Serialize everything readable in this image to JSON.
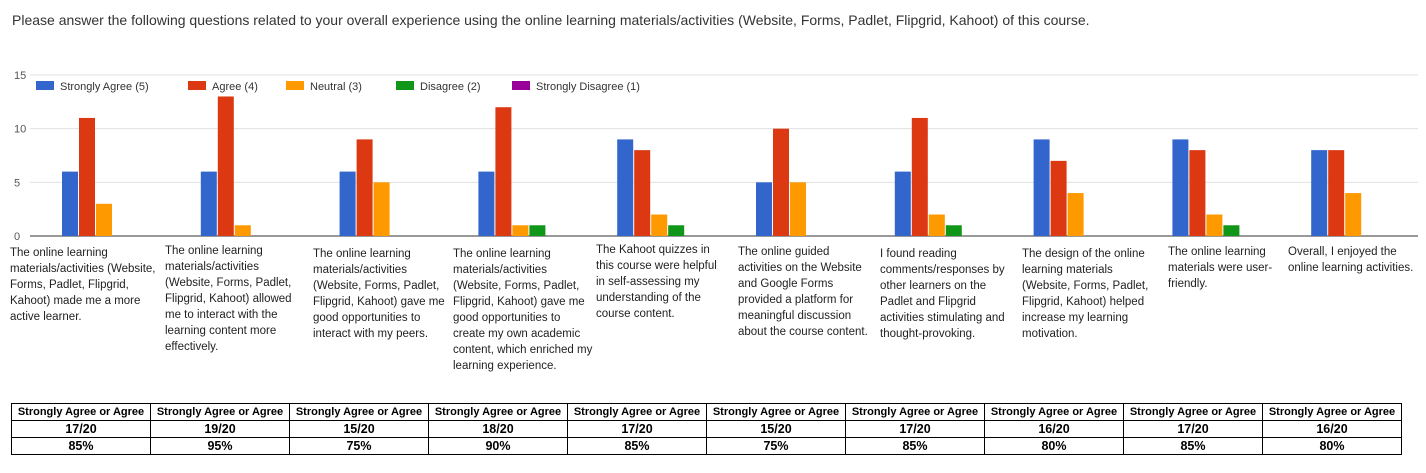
{
  "intro_text": "Please answer the following questions related to your overall experience using the online learning materials/activities (Website, Forms, Padlet, Flipgrid, Kahoot) of this course.",
  "colors": {
    "strongly_agree": "#3366cc",
    "agree": "#dc3912",
    "neutral": "#ff9900",
    "disagree": "#109618",
    "strongly_disagree": "#990099",
    "grid": "#e0e0e0",
    "axis_text": "#555555"
  },
  "chart_data": {
    "type": "bar",
    "categories": [
      "The online learning materials/activities (Website, Forms, Padlet, Flipgrid, Kahoot) made me a more active learner.",
      "The online learning materials/activities (Website, Forms, Padlet, Flipgrid, Kahoot) allowed me to interact with the learning content more effectively.",
      "The online learning materials/activities (Website, Forms, Padlet, Flipgrid, Kahoot) gave me good opportunities to interact with my peers.",
      "The online learning materials/activities (Website, Forms, Padlet, Flipgrid, Kahoot) gave me good opportunities to create my own academic content, which enriched my learning experience.",
      "The Kahoot quizzes in this course were helpful in self-assessing my understanding of the course content.",
      "The online guided activities on the Website and Google Forms provided a platform for meaningful discussion about the course content.",
      "I found reading comments/responses by other learners on the Padlet and Flipgrid activities stimulating and thought-provoking.",
      "The design of the online learning materials (Website, Forms, Padlet, Flipgrid, Kahoot) helped increase my learning motivation.",
      "The online learning materials were user-friendly.",
      "Overall, I enjoyed the online learning activities."
    ],
    "series": [
      {
        "name": "Strongly Agree (5)",
        "color": "#3366cc",
        "values": [
          6,
          6,
          6,
          6,
          9,
          5,
          6,
          9,
          9,
          8
        ]
      },
      {
        "name": "Agree (4)",
        "color": "#dc3912",
        "values": [
          11,
          13,
          9,
          12,
          8,
          10,
          11,
          7,
          8,
          8
        ]
      },
      {
        "name": "Neutral (3)",
        "color": "#ff9900",
        "values": [
          3,
          1,
          5,
          1,
          2,
          5,
          2,
          4,
          2,
          4
        ]
      },
      {
        "name": "Disagree (2)",
        "color": "#109618",
        "values": [
          0,
          0,
          0,
          1,
          1,
          0,
          1,
          0,
          1,
          0
        ]
      },
      {
        "name": "Strongly Disagree (1)",
        "color": "#990099",
        "values": [
          0,
          0,
          0,
          0,
          0,
          0,
          0,
          0,
          0,
          0
        ]
      }
    ],
    "yticks": [
      "0",
      "5",
      "10",
      "15"
    ],
    "ylim": [
      0,
      15
    ],
    "grid": true,
    "legend_position": "top-left"
  },
  "summary_table": {
    "label_row": [
      "Strongly Agree or Agree",
      "Strongly Agree or Agree",
      "Strongly Agree or Agree",
      "Strongly Agree or Agree",
      "Strongly Agree or Agree",
      "Strongly Agree or Agree",
      "Strongly Agree or Agree",
      "Strongly Agree or Agree",
      "Strongly Agree or Agree",
      "Strongly Agree or Agree"
    ],
    "count_row": [
      "17/20",
      "19/20",
      "15/20",
      "18/20",
      "17/20",
      "15/20",
      "17/20",
      "16/20",
      "17/20",
      "16/20"
    ],
    "percent_row": [
      "85%",
      "95%",
      "75%",
      "90%",
      "85%",
      "75%",
      "85%",
      "80%",
      "85%",
      "80%"
    ]
  }
}
